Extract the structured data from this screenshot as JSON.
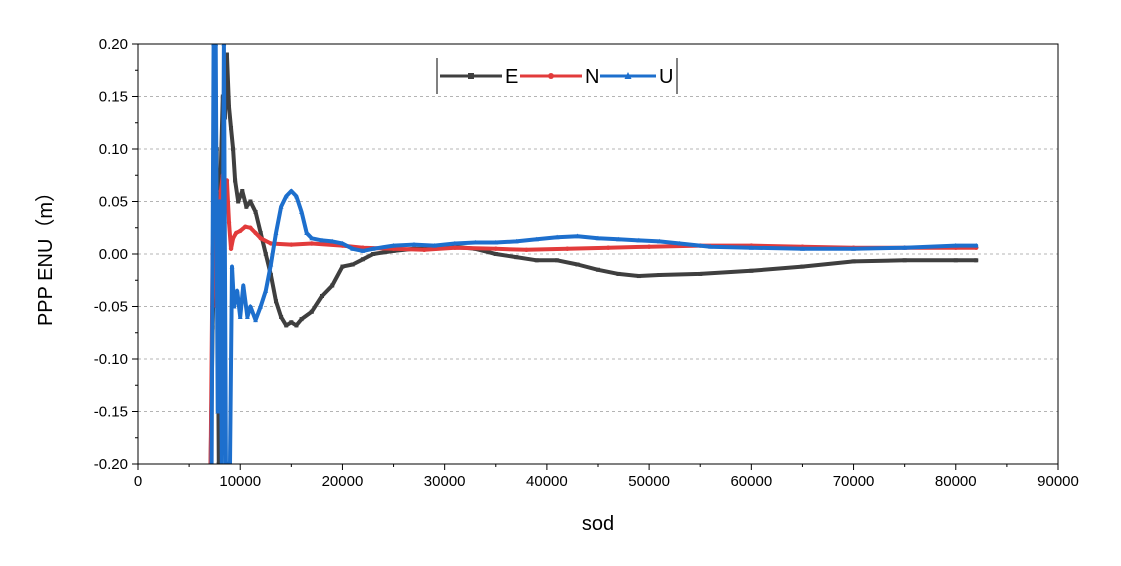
{
  "chart_data": {
    "type": "line",
    "xlabel": "sod",
    "ylabel": "PPP ENU（m）",
    "xlim": [
      0,
      90000
    ],
    "ylim": [
      -0.2,
      0.2
    ],
    "x_ticks": [
      0,
      10000,
      20000,
      30000,
      40000,
      50000,
      60000,
      70000,
      80000,
      90000
    ],
    "y_ticks": [
      0.2,
      0.15,
      0.1,
      0.05,
      0.0,
      -0.05,
      -0.1,
      -0.15,
      -0.2
    ],
    "x_tick_labels": [
      "0",
      "10000",
      "20000",
      "30000",
      "40000",
      "50000",
      "60000",
      "70000",
      "80000",
      "90000"
    ],
    "y_tick_labels": [
      "0.20",
      "0.15",
      "0.10",
      "0.05",
      "0.00",
      "-0.05",
      "-0.10",
      "-0.15",
      "-0.20"
    ],
    "grid": "horizontal dashed",
    "legend_position": "top-center",
    "series": [
      {
        "name": "E",
        "color": "#3f3f3f",
        "marker": "square",
        "points": [
          [
            7100,
            -0.2
          ],
          [
            7300,
            -0.07
          ],
          [
            7500,
            0.02
          ],
          [
            7700,
            0.1
          ],
          [
            7900,
            -0.2
          ],
          [
            8100,
            0.08
          ],
          [
            8300,
            0.15
          ],
          [
            8500,
            0.13
          ],
          [
            8700,
            0.19
          ],
          [
            8900,
            0.14
          ],
          [
            9100,
            0.12
          ],
          [
            9300,
            0.1
          ],
          [
            9500,
            0.07
          ],
          [
            9800,
            0.05
          ],
          [
            10200,
            0.06
          ],
          [
            10600,
            0.045
          ],
          [
            11000,
            0.05
          ],
          [
            11500,
            0.04
          ],
          [
            12000,
            0.02
          ],
          [
            12500,
            0.0
          ],
          [
            13000,
            -0.02
          ],
          [
            13500,
            -0.045
          ],
          [
            14000,
            -0.06
          ],
          [
            14500,
            -0.068
          ],
          [
            15000,
            -0.065
          ],
          [
            15500,
            -0.068
          ],
          [
            16000,
            -0.062
          ],
          [
            17000,
            -0.055
          ],
          [
            18000,
            -0.04
          ],
          [
            19000,
            -0.03
          ],
          [
            20000,
            -0.012
          ],
          [
            21000,
            -0.01
          ],
          [
            22000,
            -0.005
          ],
          [
            23000,
            0.0
          ],
          [
            25000,
            0.003
          ],
          [
            27000,
            0.005
          ],
          [
            29000,
            0.005
          ],
          [
            31000,
            0.007
          ],
          [
            33000,
            0.005
          ],
          [
            35000,
            0.0
          ],
          [
            37000,
            -0.003
          ],
          [
            39000,
            -0.006
          ],
          [
            41000,
            -0.006
          ],
          [
            43000,
            -0.01
          ],
          [
            45000,
            -0.015
          ],
          [
            47000,
            -0.019
          ],
          [
            49000,
            -0.021
          ],
          [
            51000,
            -0.02
          ],
          [
            55000,
            -0.019
          ],
          [
            60000,
            -0.016
          ],
          [
            65000,
            -0.012
          ],
          [
            70000,
            -0.007
          ],
          [
            75000,
            -0.006
          ],
          [
            80000,
            -0.006
          ],
          [
            82000,
            -0.006
          ]
        ]
      },
      {
        "name": "N",
        "color": "#e23b3b",
        "marker": "circle",
        "points": [
          [
            7100,
            -0.2
          ],
          [
            7300,
            0.0
          ],
          [
            7500,
            0.05
          ],
          [
            7700,
            -0.05
          ],
          [
            7900,
            0.0
          ],
          [
            8100,
            0.06
          ],
          [
            8300,
            0.075
          ],
          [
            8500,
            0.04
          ],
          [
            8700,
            0.07
          ],
          [
            8900,
            0.03
          ],
          [
            9100,
            0.005
          ],
          [
            9300,
            0.015
          ],
          [
            9600,
            0.02
          ],
          [
            10000,
            0.022
          ],
          [
            10500,
            0.026
          ],
          [
            11000,
            0.025
          ],
          [
            11500,
            0.02
          ],
          [
            12000,
            0.015
          ],
          [
            13000,
            0.01
          ],
          [
            15000,
            0.009
          ],
          [
            17000,
            0.01
          ],
          [
            20000,
            0.008
          ],
          [
            22000,
            0.006
          ],
          [
            25000,
            0.005
          ],
          [
            28000,
            0.004
          ],
          [
            31000,
            0.006
          ],
          [
            35000,
            0.005
          ],
          [
            38000,
            0.004
          ],
          [
            42000,
            0.005
          ],
          [
            46000,
            0.006
          ],
          [
            50000,
            0.007
          ],
          [
            55000,
            0.008
          ],
          [
            60000,
            0.008
          ],
          [
            65000,
            0.007
          ],
          [
            70000,
            0.006
          ],
          [
            75000,
            0.006
          ],
          [
            80000,
            0.006
          ],
          [
            82000,
            0.006
          ]
        ]
      },
      {
        "name": "U",
        "color": "#1d6fcd",
        "marker": "triangle",
        "points": [
          [
            7200,
            -0.2
          ],
          [
            7400,
            0.2
          ],
          [
            7600,
            0.2
          ],
          [
            7800,
            -0.15
          ],
          [
            8000,
            0.05
          ],
          [
            8200,
            -0.2
          ],
          [
            8400,
            0.2
          ],
          [
            8600,
            -0.2
          ],
          [
            8800,
            -0.2
          ],
          [
            9000,
            -0.2
          ],
          [
            9200,
            -0.012
          ],
          [
            9400,
            -0.05
          ],
          [
            9700,
            -0.035
          ],
          [
            10000,
            -0.06
          ],
          [
            10300,
            -0.03
          ],
          [
            10700,
            -0.06
          ],
          [
            11000,
            -0.05
          ],
          [
            11500,
            -0.063
          ],
          [
            12000,
            -0.05
          ],
          [
            12500,
            -0.035
          ],
          [
            13000,
            -0.01
          ],
          [
            13500,
            0.02
          ],
          [
            14000,
            0.045
          ],
          [
            14500,
            0.055
          ],
          [
            15000,
            0.06
          ],
          [
            15500,
            0.055
          ],
          [
            16000,
            0.04
          ],
          [
            16500,
            0.02
          ],
          [
            17000,
            0.015
          ],
          [
            18000,
            0.013
          ],
          [
            19000,
            0.012
          ],
          [
            20000,
            0.01
          ],
          [
            21000,
            0.005
          ],
          [
            22000,
            0.003
          ],
          [
            23000,
            0.005
          ],
          [
            25000,
            0.008
          ],
          [
            27000,
            0.009
          ],
          [
            29000,
            0.008
          ],
          [
            31000,
            0.01
          ],
          [
            33000,
            0.011
          ],
          [
            35000,
            0.011
          ],
          [
            37000,
            0.012
          ],
          [
            39000,
            0.014
          ],
          [
            41000,
            0.016
          ],
          [
            43000,
            0.017
          ],
          [
            45000,
            0.015
          ],
          [
            47000,
            0.014
          ],
          [
            49000,
            0.013
          ],
          [
            51000,
            0.012
          ],
          [
            53000,
            0.01
          ],
          [
            56000,
            0.007
          ],
          [
            60000,
            0.006
          ],
          [
            65000,
            0.005
          ],
          [
            70000,
            0.005
          ],
          [
            75000,
            0.006
          ],
          [
            80000,
            0.008
          ],
          [
            82000,
            0.008
          ]
        ]
      }
    ]
  }
}
